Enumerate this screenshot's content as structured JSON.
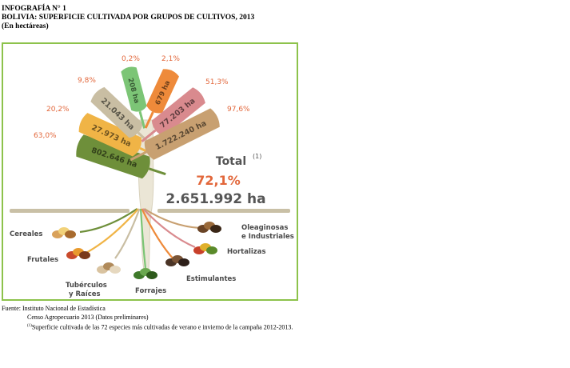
{
  "header": {
    "line1": "INFOGRAFÍA N° 1",
    "line2": "BOLIVIA: SUPERFICIE CULTIVADA POR GRUPOS DE CULTIVOS, 2013",
    "line3": "(En hectáreas)"
  },
  "chart_data": {
    "type": "bar",
    "categories": [
      "Cereales",
      "Frutales",
      "Tubérculos y Raíces",
      "Forrajes",
      "Estimulantes",
      "Hortalizas",
      "Oleaginosas e Industriales"
    ],
    "values": [
      802646,
      27973,
      21043,
      208,
      679,
      77203,
      1722240
    ],
    "value_labels": [
      "802.646 ha",
      "27.973 ha",
      "21.043 ha",
      "208 ha",
      "679 ha",
      "77.203 ha",
      "1.722.240 ha"
    ],
    "percent_labels": [
      "63,0%",
      "20,2%",
      "9,8%",
      "0,2%",
      "2,1%",
      "51,3%",
      "97,6%"
    ],
    "colors": [
      "#6e8f3a",
      "#f0b446",
      "#c9bea3",
      "#7cc576",
      "#ee8a3a",
      "#d98a8e",
      "#c8a071"
    ],
    "total": {
      "label": "Total",
      "note_mark": "(1)",
      "percent": "72,1%",
      "value": "2.651.992 ha"
    },
    "category_label_lines": [
      [
        "Cereales"
      ],
      [
        "Frutales"
      ],
      [
        "Tubérculos",
        "y Raíces"
      ],
      [
        "Forrajes"
      ],
      [
        "Estimulantes"
      ],
      [
        "Hortalizas"
      ],
      [
        "Oleaginosas",
        "e Industriales"
      ]
    ]
  },
  "footer": {
    "source": "Fuente: Instituto Nacional de Estadística",
    "line2": "Censo Agropecuario 2013 (Datos preliminares)",
    "note_mark": "(1)",
    "line3": "Superficie cultivada de las 72 especies más cultivadas de verano e invierno de la campaña 2012-2013."
  }
}
